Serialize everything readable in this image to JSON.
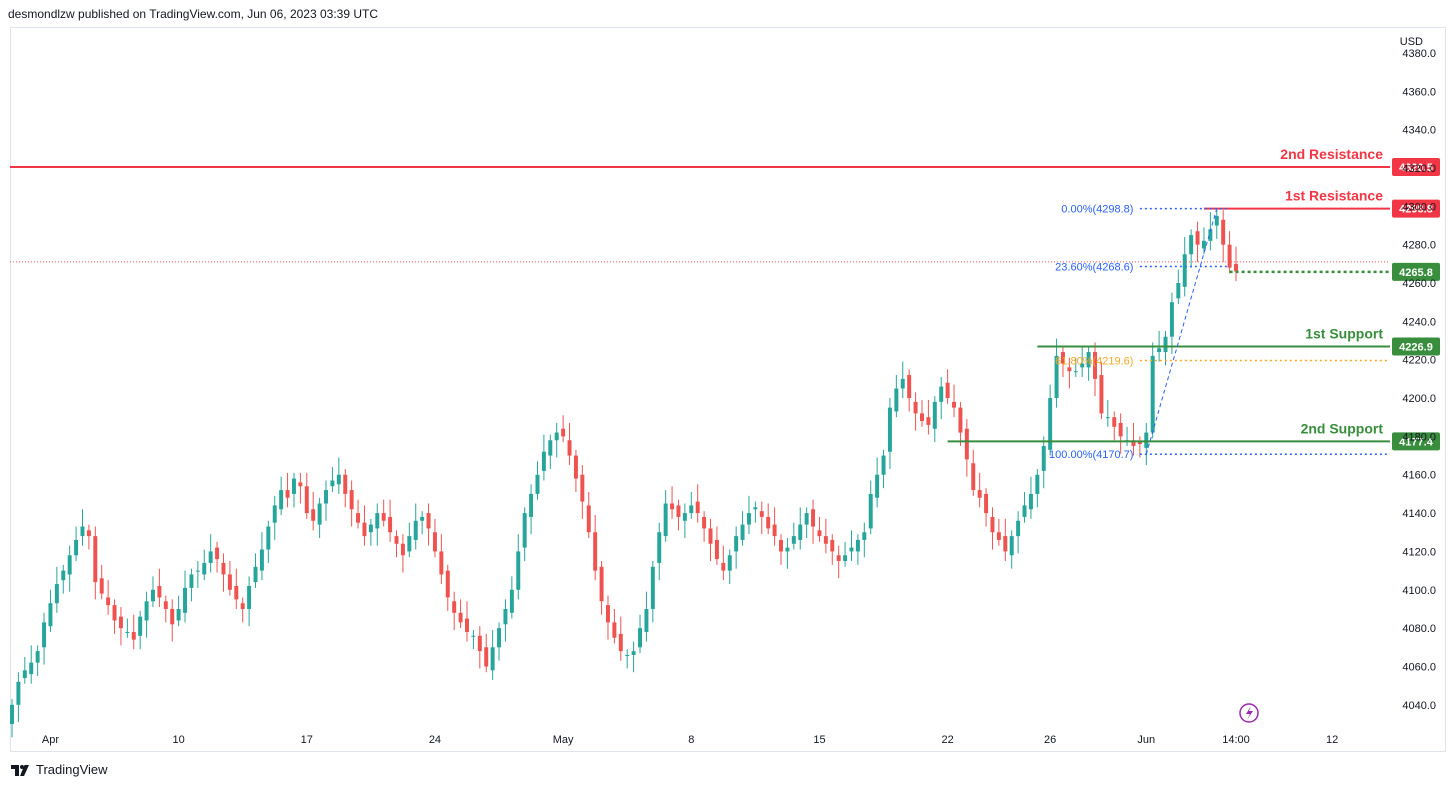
{
  "header": {
    "attribution": "desmondlzw published on TradingView.com, Jun 06, 2023 03:39 UTC"
  },
  "footer": {
    "brand": "TradingView"
  },
  "colors": {
    "up": "#26a69a",
    "down": "#ef5350",
    "resistance": "#f23645",
    "support": "#388e3c",
    "fib": "#2962ff",
    "fib_mid": "#f9a825"
  },
  "chart_data": {
    "type": "candlestick",
    "currency": "USD",
    "ylim": [
      4030,
      4393
    ],
    "y_ticks": [
      "4040.0",
      "4060.0",
      "4080.0",
      "4100.0",
      "4120.0",
      "4140.0",
      "4160.0",
      "4180.0",
      "4200.0",
      "4220.0",
      "4240.0",
      "4260.0",
      "4280.0",
      "4300.0",
      "4320.0",
      "4340.0",
      "4360.0",
      "4380.0"
    ],
    "x_ticks": [
      {
        "label": "Apr",
        "i": 6
      },
      {
        "label": "10",
        "i": 26
      },
      {
        "label": "17",
        "i": 46
      },
      {
        "label": "24",
        "i": 66
      },
      {
        "label": "May",
        "i": 86
      },
      {
        "label": "8",
        "i": 106
      },
      {
        "label": "15",
        "i": 126
      },
      {
        "label": "22",
        "i": 146
      },
      {
        "label": "26",
        "i": 162
      },
      {
        "label": "Jun",
        "i": 177
      },
      {
        "label": "14:00",
        "i": 191
      },
      {
        "label": "12",
        "i": 206
      }
    ],
    "levels": [
      {
        "label": "2nd Resistance",
        "value": 4320.5,
        "tag": "4320.5",
        "kind": "resistance"
      },
      {
        "label": "1st Resistance",
        "value": 4298.8,
        "tag": "4298.8",
        "kind": "resistance"
      },
      {
        "label": "1st Support",
        "value": 4226.9,
        "tag": "4226.9",
        "kind": "support"
      },
      {
        "label": "2nd Support",
        "value": 4177.4,
        "tag": "4177.4",
        "kind": "support"
      }
    ],
    "current_price": {
      "value": 4265.8,
      "tag": "4265.8"
    },
    "fibonacci": [
      {
        "label": "0.00%(4298.8)",
        "value": 4298.8
      },
      {
        "label": "23.60%(4268.6)",
        "value": 4268.6
      },
      {
        "label": "61.80%(4219.6)",
        "value": 4219.6
      },
      {
        "label": "100.00%(4170.7)",
        "value": 4170.7
      }
    ],
    "closes": [
      4040,
      4052,
      4058,
      4062,
      4068,
      4083,
      4093,
      4103,
      4110,
      4118,
      4126,
      4133,
      4128,
      4104,
      4098,
      4092,
      4084,
      4080,
      4078,
      4074,
      4086,
      4094,
      4100,
      4096,
      4090,
      4082,
      4090,
      4101,
      4108,
      4110,
      4114,
      4120,
      4116,
      4108,
      4100,
      4095,
      4090,
      4102,
      4112,
      4121,
      4133,
      4144,
      4152,
      4148,
      4158,
      4154,
      4140,
      4136,
      4145,
      4152,
      4157,
      4160,
      4150,
      4142,
      4135,
      4128,
      4134,
      4140,
      4136,
      4130,
      4124,
      4118,
      4128,
      4136,
      4138,
      4132,
      4120,
      4108,
      4096,
      4088,
      4083,
      4078,
      4076,
      4068,
      4060,
      4070,
      4080,
      4090,
      4100,
      4120,
      4140,
      4150,
      4160,
      4172,
      4178,
      4182,
      4180,
      4170,
      4158,
      4146,
      4130,
      4110,
      4094,
      4083,
      4075,
      4068,
      4066,
      4068,
      4080,
      4090,
      4112,
      4130,
      4145,
      4142,
      4138,
      4140,
      4144,
      4140,
      4132,
      4124,
      4116,
      4110,
      4118,
      4128,
      4134,
      4140,
      4143,
      4138,
      4132,
      4128,
      4120,
      4122,
      4128,
      4134,
      4140,
      4133,
      4128,
      4124,
      4120,
      4115,
      4118,
      4122,
      4126,
      4130,
      4150,
      4160,
      4170,
      4195,
      4205,
      4210,
      4200,
      4192,
      4188,
      4186,
      4198,
      4206,
      4200,
      4195,
      4182,
      4168,
      4152,
      4148,
      4140,
      4130,
      4126,
      4120,
      4128,
      4136,
      4144,
      4150,
      4160,
      4175,
      4200,
      4222,
      4218,
      4214,
      4214,
      4218,
      4224,
      4210,
      4192,
      4190,
      4185,
      4180,
      4178,
      4175,
      4176,
      4182,
      4222,
      4226,
      4232,
      4250,
      4260,
      4275,
      4285,
      4280,
      4282,
      4288,
      4295,
      4280,
      4268,
      4266
    ]
  }
}
